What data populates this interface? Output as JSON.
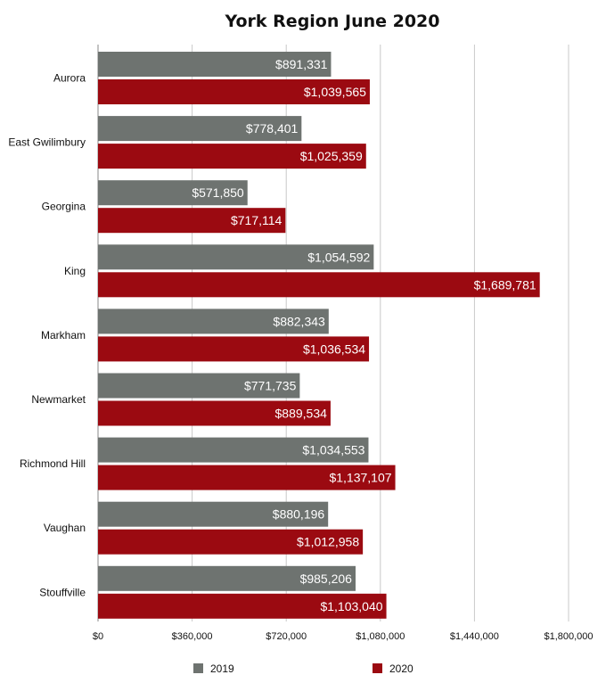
{
  "chart_data": {
    "type": "bar",
    "orientation": "horizontal",
    "title": "York Region June 2020",
    "xlabel": "",
    "ylabel": "",
    "categories": [
      "Aurora",
      "East Gwilimbury",
      "Georgina",
      "King",
      "Markham",
      "Newmarket",
      "Richmond Hill",
      "Vaughan",
      "Stouffville"
    ],
    "series": [
      {
        "name": "2019",
        "color": "#6e7370",
        "values": [
          891331,
          778401,
          571850,
          1054592,
          882343,
          771735,
          1034553,
          880196,
          985206
        ],
        "labels": [
          "$891,331",
          "$778,401",
          "$571,850",
          "$1,054,592",
          "$882,343",
          "$771,735",
          "$1,034,553",
          "$880,196",
          "$985,206"
        ]
      },
      {
        "name": "2020",
        "color": "#9b0a11",
        "values": [
          1039565,
          1025359,
          717114,
          1689781,
          1036534,
          889534,
          1137107,
          1012958,
          1103040
        ],
        "labels": [
          "$1,039,565",
          "$1,025,359",
          "$717,114",
          "$1,689,781",
          "$1,036,534",
          "$889,534",
          "$1,137,107",
          "$1,012,958",
          "$1,103,040"
        ]
      }
    ],
    "xlim": [
      0,
      1800000
    ],
    "xticks": [
      0,
      360000,
      720000,
      1080000,
      1440000,
      1800000
    ],
    "xtick_labels": [
      "$0",
      "$360,000",
      "$720,000",
      "$1,080,000",
      "$1,440,000",
      "$1,800,000"
    ],
    "grid": "vertical",
    "legend": "bottom"
  }
}
